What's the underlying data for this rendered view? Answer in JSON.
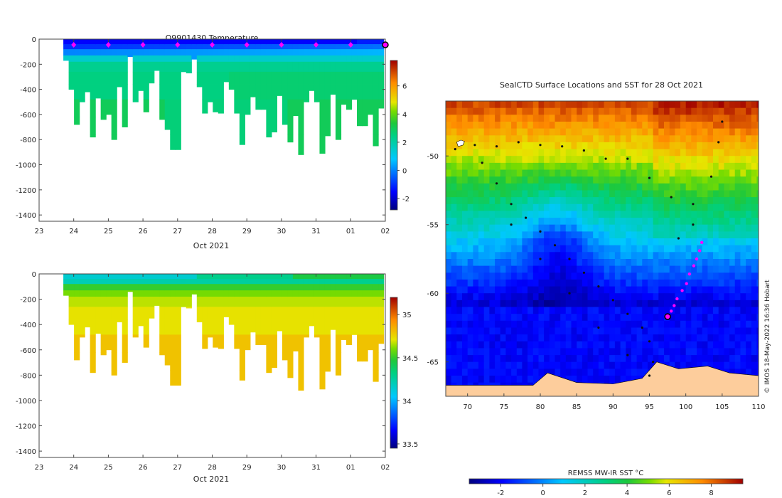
{
  "chart_data": [
    {
      "type": "heatmap",
      "title": "Q9901430  Temperature",
      "xlabel": "Oct 2021",
      "ylabel": "",
      "x_ticks": [
        "23",
        "24",
        "25",
        "26",
        "27",
        "28",
        "29",
        "30",
        "31",
        "01",
        "02"
      ],
      "y_ticks": [
        0,
        -200,
        -400,
        -600,
        -800,
        -1000,
        -1200,
        -1400
      ],
      "ylim": [
        -1450,
        0
      ],
      "colorbar": {
        "min": -2.8,
        "max": 7.8,
        "ticks": [
          -2,
          0,
          2,
          4,
          6
        ]
      },
      "surface_values_c": [
        -1.5,
        -1.0,
        0.0,
        1.5,
        2.3
      ],
      "deep_values_c": [
        2.5,
        3.0,
        3.4
      ],
      "profile_max_depths_m": [
        170,
        400,
        680,
        500,
        420,
        780,
        470,
        640,
        600,
        800,
        380,
        700,
        140,
        500,
        410,
        580,
        350,
        250,
        640,
        720,
        880,
        880,
        260,
        270,
        160,
        380,
        590,
        500,
        580,
        590,
        340,
        400,
        590,
        840,
        600,
        460,
        560,
        560,
        780,
        740,
        450,
        680,
        820,
        610,
        920,
        500,
        410,
        500,
        910,
        770,
        440,
        800,
        520,
        560,
        480,
        690,
        690,
        600,
        850,
        550
      ],
      "surfacing_markers_x": [
        "24",
        "25",
        "26",
        "27",
        "28",
        "29",
        "30",
        "31",
        "01",
        "02"
      ]
    },
    {
      "type": "heatmap",
      "title": "",
      "xlabel": "Oct 2021",
      "ylabel": "",
      "x_ticks": [
        "23",
        "24",
        "25",
        "26",
        "27",
        "28",
        "29",
        "30",
        "31",
        "01",
        "02"
      ],
      "y_ticks": [
        0,
        -200,
        -400,
        -600,
        -800,
        -1000,
        -1200,
        -1400
      ],
      "ylim": [
        -1450,
        0
      ],
      "colorbar": {
        "min": 33.45,
        "max": 35.2,
        "ticks": [
          33.5,
          34,
          34.5,
          35
        ]
      },
      "surface_values": [
        34.15,
        34.2,
        34.3,
        34.5
      ],
      "deep_values": [
        34.72,
        34.8
      ],
      "profile_max_depths_m": [
        170,
        400,
        680,
        500,
        420,
        780,
        470,
        640,
        600,
        800,
        380,
        700,
        140,
        500,
        410,
        580,
        350,
        250,
        640,
        720,
        880,
        880,
        260,
        270,
        160,
        380,
        590,
        500,
        580,
        590,
        340,
        400,
        590,
        840,
        600,
        460,
        560,
        560,
        780,
        740,
        450,
        680,
        820,
        610,
        920,
        500,
        410,
        500,
        910,
        770,
        440,
        800,
        520,
        560,
        480,
        690,
        690,
        600,
        850,
        550
      ],
      "surfacing_markers_x": []
    },
    {
      "type": "heatmap",
      "title": "SealCTD Surface Locations and SST for 28 Oct 2021",
      "xlabel": "",
      "ylabel": "",
      "x_ticks": [
        70,
        75,
        80,
        85,
        90,
        95,
        100,
        105,
        110
      ],
      "y_ticks": [
        -50,
        -55,
        -60,
        -65
      ],
      "xlim": [
        67,
        110
      ],
      "ylim": [
        -67.5,
        -46
      ],
      "colorbar": {
        "label": "REMSS MW-IR SST °C",
        "min": -3.5,
        "max": 9.5,
        "ticks": [
          -2,
          0,
          2,
          4,
          6,
          8
        ]
      },
      "land_color": "#fdcd9c",
      "current_position": {
        "lon": 97.5,
        "lat": -61.7
      },
      "recent_track": [
        {
          "lon": 102.2,
          "lat": -56.3
        },
        {
          "lon": 101.9,
          "lat": -56.9
        },
        {
          "lon": 101.5,
          "lat": -57.5
        },
        {
          "lon": 101.1,
          "lat": -58.0
        },
        {
          "lon": 100.5,
          "lat": -58.6
        },
        {
          "lon": 100.1,
          "lat": -59.3
        },
        {
          "lon": 99.5,
          "lat": -59.8
        },
        {
          "lon": 98.8,
          "lat": -60.4
        },
        {
          "lon": 98.4,
          "lat": -60.9
        },
        {
          "lon": 98.0,
          "lat": -61.3
        }
      ],
      "historical_track": [
        {
          "lon": 68.3,
          "lat": -49.5
        },
        {
          "lon": 71,
          "lat": -49.2
        },
        {
          "lon": 74,
          "lat": -49.3
        },
        {
          "lon": 77,
          "lat": -49.0
        },
        {
          "lon": 80,
          "lat": -49.2
        },
        {
          "lon": 83,
          "lat": -49.3
        },
        {
          "lon": 86,
          "lat": -49.6
        },
        {
          "lon": 89,
          "lat": -50.2
        },
        {
          "lon": 92,
          "lat": -50.2
        },
        {
          "lon": 95,
          "lat": -51.6
        },
        {
          "lon": 98,
          "lat": -53.0
        },
        {
          "lon": 101,
          "lat": -53.5
        },
        {
          "lon": 103.5,
          "lat": -51.5
        },
        {
          "lon": 104.5,
          "lat": -49.0
        },
        {
          "lon": 105,
          "lat": -47.5
        },
        {
          "lon": 72,
          "lat": -50.5
        },
        {
          "lon": 74,
          "lat": -52.0
        },
        {
          "lon": 76,
          "lat": -53.5
        },
        {
          "lon": 78,
          "lat": -54.5
        },
        {
          "lon": 80,
          "lat": -55.5
        },
        {
          "lon": 82,
          "lat": -56.5
        },
        {
          "lon": 84,
          "lat": -57.5
        },
        {
          "lon": 86,
          "lat": -58.5
        },
        {
          "lon": 88,
          "lat": -59.5
        },
        {
          "lon": 90,
          "lat": -60.5
        },
        {
          "lon": 92,
          "lat": -61.5
        },
        {
          "lon": 94,
          "lat": -62.5
        },
        {
          "lon": 95,
          "lat": -63.5
        },
        {
          "lon": 95.5,
          "lat": -65.0
        },
        {
          "lon": 95,
          "lat": -66.0
        },
        {
          "lon": 76,
          "lat": -55.0
        },
        {
          "lon": 80,
          "lat": -57.5
        },
        {
          "lon": 84,
          "lat": -60.0
        },
        {
          "lon": 88,
          "lat": -62.5
        },
        {
          "lon": 92,
          "lat": -64.5
        },
        {
          "lon": 101,
          "lat": -55.0
        },
        {
          "lon": 99,
          "lat": -56.0
        }
      ],
      "credit": "© IMOS 18-May-2022 16:36 Hobart"
    }
  ]
}
